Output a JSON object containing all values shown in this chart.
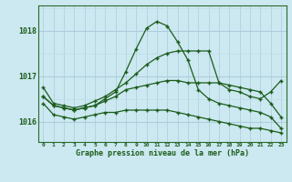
{
  "title": "Graphe pression niveau de la mer (hPa)",
  "bg_color": "#cce8f0",
  "grid_color_major": "#aaccdd",
  "grid_color_minor": "#bbdde8",
  "line_color": "#1a5c1a",
  "x_ticks": [
    0,
    1,
    2,
    3,
    4,
    5,
    6,
    7,
    8,
    9,
    10,
    11,
    12,
    13,
    14,
    15,
    16,
    17,
    18,
    19,
    20,
    21,
    22,
    23
  ],
  "ylim": [
    1015.55,
    1018.55
  ],
  "yticks": [
    1016,
    1017,
    1018
  ],
  "series": [
    [
      1016.75,
      1016.4,
      1016.35,
      1016.3,
      1016.35,
      1016.45,
      1016.55,
      1016.7,
      1016.85,
      1017.05,
      1017.25,
      1017.4,
      1017.5,
      1017.55,
      1017.55,
      1017.55,
      1017.55,
      1016.85,
      1016.7,
      1016.65,
      1016.55,
      1016.5,
      1016.65,
      1016.9
    ],
    [
      1016.55,
      1016.35,
      1016.3,
      1016.25,
      1016.3,
      1016.35,
      1016.5,
      1016.65,
      1017.1,
      1017.6,
      1018.05,
      1018.2,
      1018.1,
      1017.75,
      1017.35,
      1016.7,
      1016.5,
      1016.4,
      1016.35,
      1016.3,
      1016.25,
      1016.2,
      1016.1,
      1015.85
    ],
    [
      1016.55,
      1016.35,
      1016.3,
      1016.25,
      1016.3,
      1016.35,
      1016.45,
      1016.55,
      1016.7,
      1016.75,
      1016.8,
      1016.85,
      1016.9,
      1016.9,
      1016.85,
      1016.85,
      1016.85,
      1016.85,
      1016.8,
      1016.75,
      1016.7,
      1016.65,
      1016.4,
      1016.1
    ],
    [
      1016.4,
      1016.15,
      1016.1,
      1016.05,
      1016.1,
      1016.15,
      1016.2,
      1016.2,
      1016.25,
      1016.25,
      1016.25,
      1016.25,
      1016.25,
      1016.2,
      1016.15,
      1016.1,
      1016.05,
      1016.0,
      1015.95,
      1015.9,
      1015.85,
      1015.85,
      1015.8,
      1015.75
    ]
  ]
}
